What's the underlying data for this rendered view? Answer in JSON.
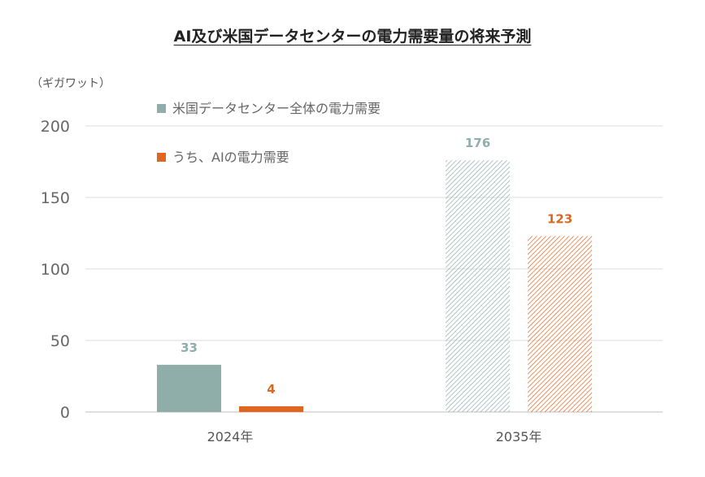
{
  "chart_data": {
    "type": "bar",
    "title": "AI及び米国データセンターの電力需要量の将来予測",
    "ylabel": "（ギガワット）",
    "xlabel": "",
    "ylim": [
      0,
      200
    ],
    "yticks": [
      0,
      50,
      100,
      150,
      200
    ],
    "grid": true,
    "legend_position": "top-left",
    "categories": [
      "2024年",
      "2035年"
    ],
    "series": [
      {
        "name": "米国データセンター全体の電力需要",
        "values": [
          33,
          176
        ],
        "color": "#8fada9",
        "label_color": "#8fada9",
        "pattern": [
          "solid",
          "hatched"
        ]
      },
      {
        "name": "うち、AIの電力需要",
        "values": [
          4,
          123
        ],
        "color": "#e0661f",
        "label_color": "#d9691f",
        "pattern": [
          "solid",
          "hatched"
        ]
      }
    ]
  }
}
